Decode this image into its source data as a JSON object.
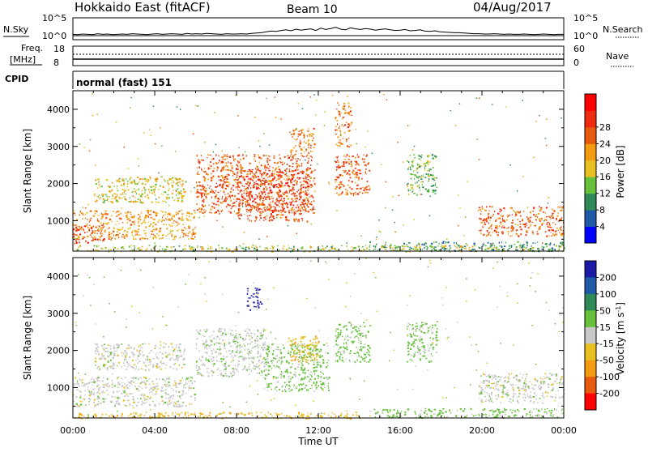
{
  "header": {
    "site": "Hokkaido East (fitACF)",
    "beam": "Beam 10",
    "date": "04/Aug/2017"
  },
  "noise_panel": {
    "left_label": "N.Sky",
    "right_label": "N.Search",
    "ticks_left": [
      "10^5",
      "10^0"
    ],
    "ticks_right": [
      "10^5",
      "10^0"
    ],
    "sky_series": [
      0.4,
      0.3,
      0.5,
      0.4,
      0.3,
      0.6,
      0.4,
      0.5,
      0.3,
      0.4,
      0.5,
      0.4,
      0.6,
      0.5,
      0.4,
      0.3,
      0.5,
      0.6,
      0.4,
      0.5,
      0.6,
      0.5,
      0.4,
      0.7,
      0.5,
      0.6,
      0.5,
      0.7,
      0.6,
      0.5,
      0.4,
      0.6,
      0.5,
      0.5,
      0.6,
      0.5,
      0.7,
      0.8,
      0.9,
      1.2,
      1.4,
      1.3,
      1.6,
      1.8,
      1.5,
      2.0,
      1.7,
      1.9,
      2.1,
      1.6,
      2.3,
      1.9,
      2.2,
      2.6,
      2.0,
      1.8,
      2.4,
      2.1,
      1.9,
      2.2,
      2.0,
      1.7,
      1.9,
      2.1,
      1.8,
      1.6,
      1.7,
      1.9,
      1.5,
      1.6,
      1.8,
      1.4,
      1.3,
      1.5,
      1.2,
      1.1,
      1.0,
      0.9,
      0.9,
      0.8,
      0.7,
      0.6,
      0.6,
      0.5,
      0.5,
      0.6,
      0.5,
      0.4,
      0.5,
      0.4,
      0.4,
      0.5,
      0.4,
      0.3,
      0.4,
      0.5,
      0.4,
      0.3,
      0.4,
      0.4
    ]
  },
  "freq_panel": {
    "left_label": "Freq.",
    "left_unit": "[MHz]",
    "right_label": "Nave",
    "ticks_left": [
      "18",
      "8"
    ],
    "ticks_right": [
      "60",
      "0"
    ]
  },
  "cpid_panel": {
    "label": "CPID",
    "text": "normal (fast) 151"
  },
  "x_axis": {
    "label": "Time UT",
    "ticks": [
      "00:00",
      "04:00",
      "08:00",
      "12:00",
      "16:00",
      "20:00",
      "00:00"
    ]
  },
  "chart_data": [
    {
      "type": "heatmap",
      "title": "",
      "ylabel": "Slant Range [km]",
      "xlabel": "Time UT",
      "ylim": [
        180,
        4500
      ],
      "yticks": [
        1000,
        2000,
        3000,
        4000
      ],
      "colorbar": {
        "label": "Power [dB]",
        "ticks": [
          4,
          8,
          12,
          16,
          20,
          24,
          28
        ],
        "colors": [
          "#0000ff",
          "#1e5aa8",
          "#2e8b57",
          "#66c03a",
          "#e8c020",
          "#f39c12",
          "#e85b0f",
          "#ee2a10",
          "#ff0000"
        ]
      },
      "echo_regions": [
        {
          "t0": 0.0,
          "t1": 6.0,
          "r0": 500,
          "r1": 1300,
          "value": 22
        },
        {
          "t0": 0.0,
          "t1": 1.5,
          "r0": 400,
          "r1": 900,
          "value": 28
        },
        {
          "t0": 1.0,
          "t1": 5.5,
          "r0": 1500,
          "r1": 2200,
          "value": 18
        },
        {
          "t0": 6.0,
          "t1": 11.8,
          "r0": 1200,
          "r1": 2800,
          "value": 27
        },
        {
          "t0": 8.0,
          "t1": 11.5,
          "r0": 1000,
          "r1": 2400,
          "value": 28
        },
        {
          "t0": 10.5,
          "t1": 11.8,
          "r0": 2800,
          "r1": 3500,
          "value": 24
        },
        {
          "t0": 12.8,
          "t1": 14.5,
          "r0": 1700,
          "r1": 2800,
          "value": 27
        },
        {
          "t0": 12.8,
          "t1": 13.6,
          "r0": 3000,
          "r1": 4200,
          "value": 24
        },
        {
          "t0": 16.3,
          "t1": 17.8,
          "r0": 1700,
          "r1": 2800,
          "value": 14
        },
        {
          "t0": 19.8,
          "t1": 24.0,
          "r0": 600,
          "r1": 1400,
          "value": 26
        },
        {
          "t0": 14.5,
          "t1": 24.0,
          "r0": 200,
          "r1": 450,
          "value": 10
        },
        {
          "t0": 0.0,
          "t1": 24.0,
          "r0": 180,
          "r1": 350,
          "value": 16
        }
      ]
    },
    {
      "type": "heatmap",
      "title": "",
      "ylabel": "Slant Range [km]",
      "xlabel": "Time UT",
      "ylim": [
        180,
        4500
      ],
      "yticks": [
        1000,
        2000,
        3000,
        4000
      ],
      "colorbar": {
        "label": "Velocity [m s^-1]",
        "ticks": [
          200,
          100,
          50,
          15,
          -15,
          -50,
          -100,
          -200
        ],
        "colors": [
          "#1a1aa6",
          "#1e5aa8",
          "#2e8b57",
          "#66c03a",
          "#c8c8c8",
          "#e8c020",
          "#f39c12",
          "#e85b0f",
          "#ff0000"
        ]
      },
      "echo_regions": [
        {
          "t0": 0.0,
          "t1": 6.0,
          "r0": 500,
          "r1": 1300,
          "value": 0
        },
        {
          "t0": 1.0,
          "t1": 5.5,
          "r0": 1500,
          "r1": 2200,
          "value": 0
        },
        {
          "t0": 6.0,
          "t1": 9.5,
          "r0": 1300,
          "r1": 2600,
          "value": 5
        },
        {
          "t0": 9.3,
          "t1": 12.5,
          "r0": 900,
          "r1": 2200,
          "value": 25
        },
        {
          "t0": 8.5,
          "t1": 9.2,
          "r0": 3100,
          "r1": 3700,
          "value": 220
        },
        {
          "t0": 10.5,
          "t1": 12.0,
          "r0": 1700,
          "r1": 2400,
          "value": -40
        },
        {
          "t0": 12.8,
          "t1": 14.5,
          "r0": 1700,
          "r1": 2800,
          "value": 30
        },
        {
          "t0": 16.3,
          "t1": 17.8,
          "r0": 1700,
          "r1": 2800,
          "value": 25
        },
        {
          "t0": 19.8,
          "t1": 24.0,
          "r0": 600,
          "r1": 1400,
          "value": 0
        },
        {
          "t0": 14.5,
          "t1": 24.0,
          "r0": 200,
          "r1": 450,
          "value": 30
        },
        {
          "t0": 0.0,
          "t1": 14.0,
          "r0": 180,
          "r1": 350,
          "value": -40
        }
      ]
    }
  ]
}
